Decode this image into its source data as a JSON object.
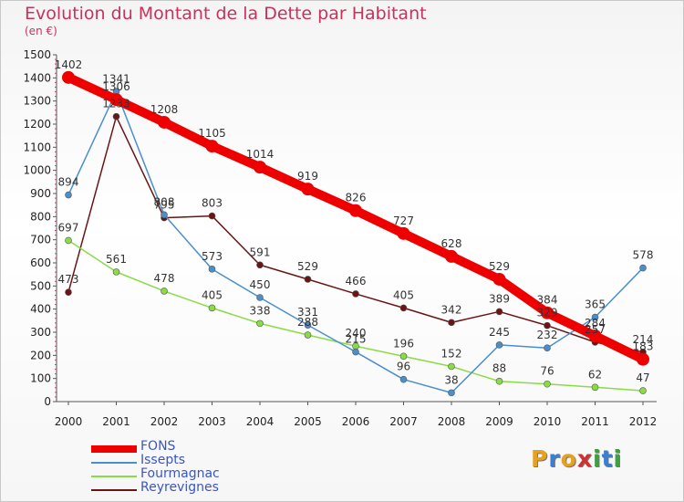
{
  "header": {
    "title": "Evolution du Montant de la Dette par Habitant",
    "subtitle": "(en €)"
  },
  "chart_data": {
    "type": "line",
    "title": "Evolution du Montant de la Dette par Habitant",
    "subtitle": "(en €)",
    "xlabel": "",
    "ylabel": "",
    "ylim": [
      0,
      1500
    ],
    "y_ticks": [
      "0",
      "100",
      "200",
      "300",
      "400",
      "500",
      "600",
      "700",
      "800",
      "900",
      "1000",
      "1100",
      "1200",
      "1300",
      "1400",
      "1500"
    ],
    "categories": [
      "2000",
      "2001",
      "2002",
      "2003",
      "2004",
      "2005",
      "2006",
      "2007",
      "2008",
      "2009",
      "2010",
      "2011",
      "2012"
    ],
    "grid": false,
    "legend_position": "bottom-left",
    "series": [
      {
        "name": "FONS",
        "color": "#ee0000",
        "values": [
          1402,
          1306,
          1208,
          1105,
          1014,
          919,
          826,
          727,
          628,
          529,
          384,
          284,
          183
        ]
      },
      {
        "name": "Issepts",
        "color": "#4a8fcc",
        "values": [
          894,
          1341,
          808,
          573,
          450,
          331,
          215,
          96,
          38,
          245,
          232,
          365,
          578
        ]
      },
      {
        "name": "Fourmagnac",
        "color": "#88dd44",
        "values": [
          697,
          561,
          478,
          405,
          338,
          288,
          240,
          196,
          152,
          88,
          76,
          62,
          47
        ]
      },
      {
        "name": "Reyrevignes",
        "color": "#6b1414",
        "values": [
          473,
          1233,
          795,
          803,
          591,
          529,
          466,
          405,
          342,
          389,
          329,
          257,
          214
        ]
      }
    ]
  },
  "logo": {
    "letters": [
      "P",
      "r",
      "o",
      "x",
      "i",
      "t",
      "i"
    ],
    "colors": [
      "#e8a020",
      "#3a7fd0",
      "#e8a020",
      "#d03030",
      "#40a040",
      "#3a7fd0",
      "#40a040"
    ]
  }
}
